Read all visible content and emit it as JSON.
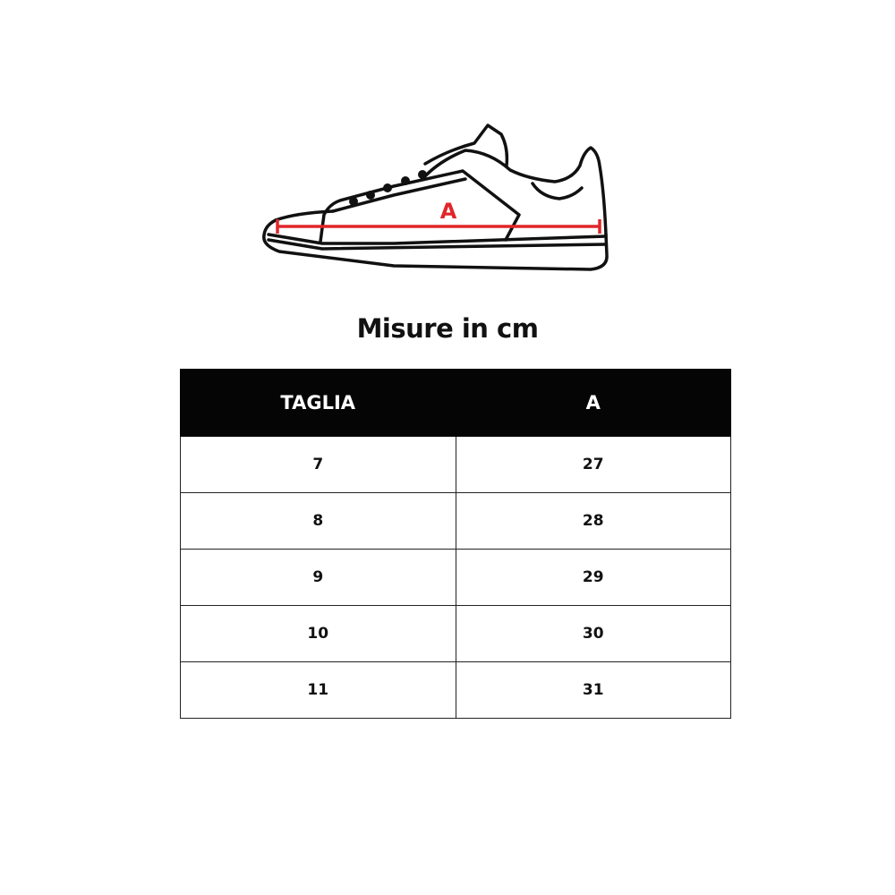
{
  "diagram": {
    "measure_label": "A",
    "measure_color": "#e0262a",
    "icon": "sneaker-outline"
  },
  "title": "Misure in cm",
  "table": {
    "headers": [
      "TAGLIA",
      "A"
    ],
    "rows": [
      [
        "7",
        "27"
      ],
      [
        "8",
        "28"
      ],
      [
        "9",
        "29"
      ],
      [
        "10",
        "30"
      ],
      [
        "11",
        "31"
      ]
    ]
  }
}
